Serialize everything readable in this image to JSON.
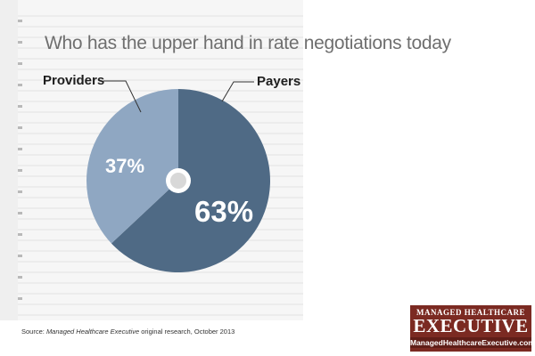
{
  "chart_data": {
    "type": "pie",
    "title": "Who has the upper hand in rate negotiations today",
    "slices": [
      {
        "label": "Payers",
        "value": 63,
        "display": "63%",
        "color": "#4f6a85"
      },
      {
        "label": "Providers",
        "value": 37,
        "display": "37%",
        "color": "#8fa7c2"
      }
    ],
    "center_dot_color": "#d8d8d8"
  },
  "footer": {
    "source_prefix": "Source: ",
    "source_publication": "Managed Healthcare Executive",
    "source_suffix": " original research, October 2013"
  },
  "logo": {
    "top": "MANAGED HEALTHCARE",
    "main": "EXECUTIVE",
    "url": "ManagedHealthcareExecutive.com",
    "color": "#7b2a22"
  }
}
